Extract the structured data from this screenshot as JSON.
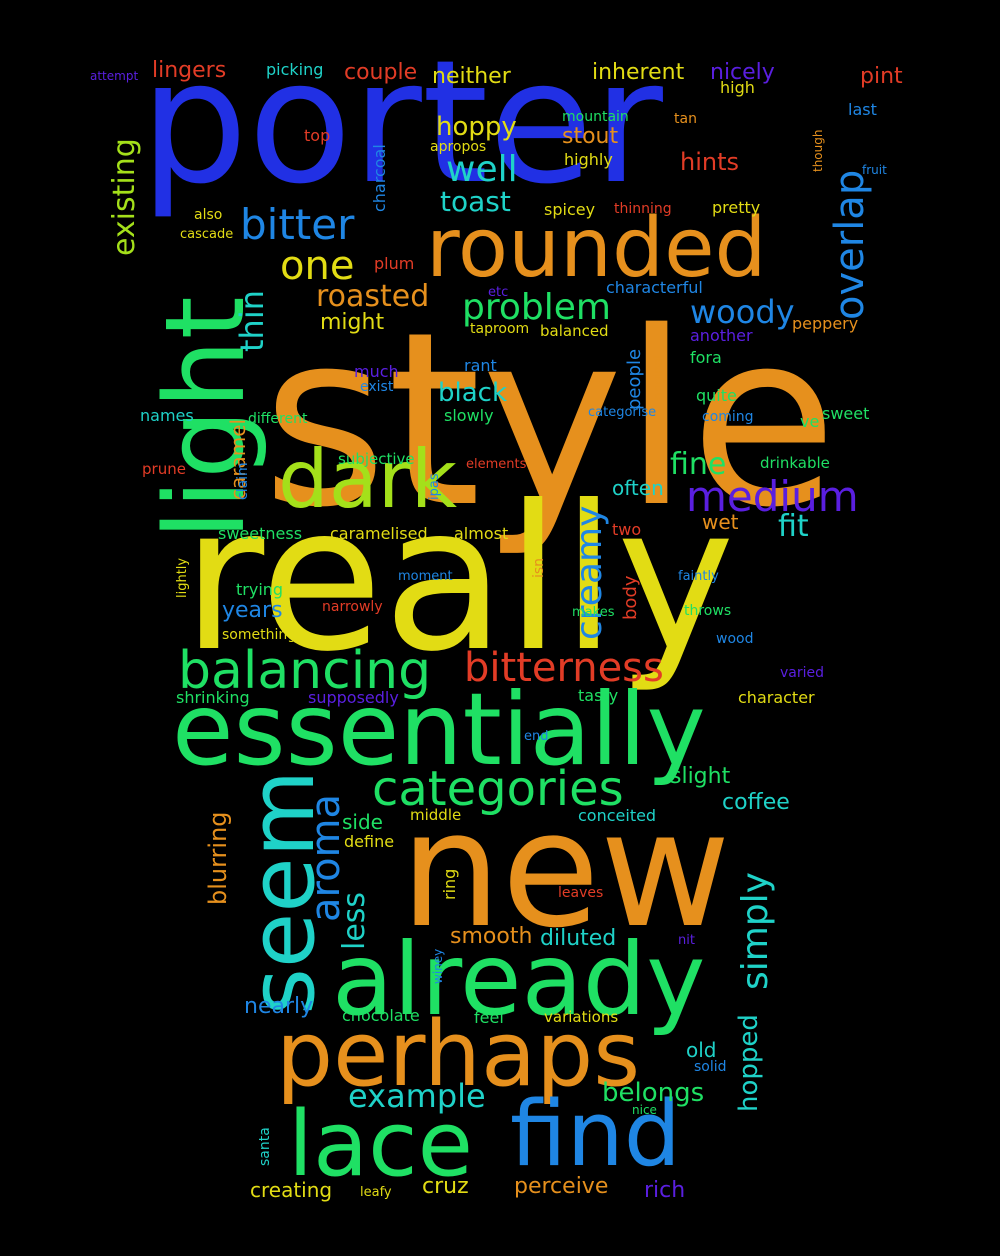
{
  "colors": {
    "background": "#000000",
    "blue": "#2130e4",
    "orange": "#e6901d",
    "yellow": "#e2dc14",
    "green": "#1fe064",
    "lightgreen": "#a4e01a",
    "cyan": "#1fd2c8",
    "azure": "#1f86e4",
    "red": "#e23c26",
    "purple": "#5a1fe0"
  },
  "words": [
    {
      "text": "style",
      "color": "orange"
    },
    {
      "text": "really",
      "color": "yellow"
    },
    {
      "text": "porter",
      "color": "blue"
    },
    {
      "text": "new",
      "color": "orange"
    },
    {
      "text": "essentially",
      "color": "green"
    },
    {
      "text": "already",
      "color": "green"
    },
    {
      "text": "perhaps",
      "color": "orange"
    },
    {
      "text": "lace",
      "color": "green"
    },
    {
      "text": "find",
      "color": "azure"
    },
    {
      "text": "rounded",
      "color": "orange"
    },
    {
      "text": "dark",
      "color": "lightgreen"
    },
    {
      "text": "light",
      "color": "green"
    },
    {
      "text": "seem",
      "color": "cyan"
    },
    {
      "text": "balancing",
      "color": "green"
    },
    {
      "text": "bitterness",
      "color": "red"
    },
    {
      "text": "categories",
      "color": "green"
    },
    {
      "text": "medium",
      "color": "purple"
    },
    {
      "text": "bitter",
      "color": "azure"
    },
    {
      "text": "one",
      "color": "yellow"
    },
    {
      "text": "overlap",
      "color": "azure"
    },
    {
      "text": "creamy",
      "color": "azure"
    },
    {
      "text": "aroma",
      "color": "azure"
    },
    {
      "text": "problem",
      "color": "green"
    },
    {
      "text": "simply",
      "color": "cyan"
    },
    {
      "text": "existing",
      "color": "lightgreen"
    },
    {
      "text": "thin",
      "color": "cyan"
    },
    {
      "text": "well",
      "color": "cyan"
    },
    {
      "text": "woody",
      "color": "azure"
    },
    {
      "text": "roasted",
      "color": "orange"
    },
    {
      "text": "example",
      "color": "cyan"
    },
    {
      "text": "fine",
      "color": "green"
    },
    {
      "text": "fit",
      "color": "cyan"
    },
    {
      "text": "less",
      "color": "cyan"
    },
    {
      "text": "hoppy",
      "color": "yellow"
    },
    {
      "text": "toast",
      "color": "cyan"
    },
    {
      "text": "hopped",
      "color": "cyan"
    },
    {
      "text": "belongs",
      "color": "green"
    },
    {
      "text": "black",
      "color": "cyan"
    },
    {
      "text": "stout",
      "color": "orange"
    },
    {
      "text": "hints",
      "color": "red"
    },
    {
      "text": "blurring",
      "color": "orange"
    },
    {
      "text": "might",
      "color": "yellow"
    },
    {
      "text": "nearly",
      "color": "azure"
    },
    {
      "text": "coffee",
      "color": "cyan"
    },
    {
      "text": "slight",
      "color": "green"
    },
    {
      "text": "smooth",
      "color": "orange"
    },
    {
      "text": "diluted",
      "color": "cyan"
    },
    {
      "text": "years",
      "color": "azure"
    },
    {
      "text": "rich",
      "color": "purple"
    },
    {
      "text": "perceive",
      "color": "orange"
    },
    {
      "text": "cruz",
      "color": "yellow"
    },
    {
      "text": "creating",
      "color": "yellow"
    },
    {
      "text": "lingers",
      "color": "red"
    },
    {
      "text": "couple",
      "color": "red"
    },
    {
      "text": "neither",
      "color": "yellow"
    },
    {
      "text": "inherent",
      "color": "yellow"
    },
    {
      "text": "nicely",
      "color": "purple"
    },
    {
      "text": "pint",
      "color": "red"
    },
    {
      "text": "caramel",
      "color": "orange"
    },
    {
      "text": "wet",
      "color": "orange"
    },
    {
      "text": "often",
      "color": "cyan"
    },
    {
      "text": "old",
      "color": "cyan"
    },
    {
      "text": "people",
      "color": "azure"
    },
    {
      "text": "body",
      "color": "red"
    },
    {
      "text": "side",
      "color": "green"
    },
    {
      "text": "picking",
      "color": "cyan"
    },
    {
      "text": "attempt",
      "color": "purple"
    },
    {
      "text": "high",
      "color": "yellow"
    },
    {
      "text": "last",
      "color": "azure"
    },
    {
      "text": "top",
      "color": "red"
    },
    {
      "text": "tan",
      "color": "orange"
    },
    {
      "text": "mountain",
      "color": "green"
    },
    {
      "text": "apropos",
      "color": "yellow"
    },
    {
      "text": "highly",
      "color": "yellow"
    },
    {
      "text": "though",
      "color": "orange"
    },
    {
      "text": "fruit",
      "color": "azure"
    },
    {
      "text": "charcoal",
      "color": "azure"
    },
    {
      "text": "also",
      "color": "yellow"
    },
    {
      "text": "cascade",
      "color": "yellow"
    },
    {
      "text": "spicey",
      "color": "yellow"
    },
    {
      "text": "thinning",
      "color": "red"
    },
    {
      "text": "pretty",
      "color": "yellow"
    },
    {
      "text": "plum",
      "color": "red"
    },
    {
      "text": "etc",
      "color": "purple"
    },
    {
      "text": "characterful",
      "color": "azure"
    },
    {
      "text": "peppery",
      "color": "orange"
    },
    {
      "text": "taproom",
      "color": "yellow"
    },
    {
      "text": "balanced",
      "color": "yellow"
    },
    {
      "text": "another",
      "color": "purple"
    },
    {
      "text": "original",
      "color": "orange"
    },
    {
      "text": "fora",
      "color": "green"
    },
    {
      "text": "rant",
      "color": "azure"
    },
    {
      "text": "much",
      "color": "purple"
    },
    {
      "text": "exist",
      "color": "azure"
    },
    {
      "text": "quite",
      "color": "green"
    },
    {
      "text": "names",
      "color": "cyan"
    },
    {
      "text": "different",
      "color": "green"
    },
    {
      "text": "slowly",
      "color": "green"
    },
    {
      "text": "categorise",
      "color": "azure"
    },
    {
      "text": "coming",
      "color": "azure"
    },
    {
      "text": "ve",
      "color": "green"
    },
    {
      "text": "sweet",
      "color": "green"
    },
    {
      "text": "claim",
      "color": "azure"
    },
    {
      "text": "subjective",
      "color": "green"
    },
    {
      "text": "elements",
      "color": "red"
    },
    {
      "text": "drinkable",
      "color": "green"
    },
    {
      "text": "prune",
      "color": "red"
    },
    {
      "text": "ipas",
      "color": "azure"
    },
    {
      "text": "sweetness",
      "color": "green"
    },
    {
      "text": "caramelised",
      "color": "yellow"
    },
    {
      "text": "almost",
      "color": "yellow"
    },
    {
      "text": "two",
      "color": "red"
    },
    {
      "text": "lightly",
      "color": "yellow"
    },
    {
      "text": "isn",
      "color": "orange"
    },
    {
      "text": "trying",
      "color": "green"
    },
    {
      "text": "moment",
      "color": "azure"
    },
    {
      "text": "faintly",
      "color": "azure"
    },
    {
      "text": "narrowly",
      "color": "red"
    },
    {
      "text": "makes",
      "color": "green"
    },
    {
      "text": "throws",
      "color": "green"
    },
    {
      "text": "something",
      "color": "yellow"
    },
    {
      "text": "wood",
      "color": "azure"
    },
    {
      "text": "varied",
      "color": "purple"
    },
    {
      "text": "shrinking",
      "color": "green"
    },
    {
      "text": "supposedly",
      "color": "purple"
    },
    {
      "text": "tasty",
      "color": "green"
    },
    {
      "text": "character",
      "color": "yellow"
    },
    {
      "text": "end",
      "color": "azure"
    },
    {
      "text": "middle",
      "color": "yellow"
    },
    {
      "text": "conceited",
      "color": "cyan"
    },
    {
      "text": "define",
      "color": "yellow"
    },
    {
      "text": "ring",
      "color": "yellow"
    },
    {
      "text": "leaves",
      "color": "red"
    },
    {
      "text": "nit",
      "color": "purple"
    },
    {
      "text": "winey",
      "color": "azure"
    },
    {
      "text": "chocolate",
      "color": "green"
    },
    {
      "text": "feel",
      "color": "green"
    },
    {
      "text": "variations",
      "color": "yellow"
    },
    {
      "text": "solid",
      "color": "azure"
    },
    {
      "text": "nice",
      "color": "green"
    },
    {
      "text": "santa",
      "color": "cyan"
    },
    {
      "text": "leafy",
      "color": "yellow"
    }
  ]
}
